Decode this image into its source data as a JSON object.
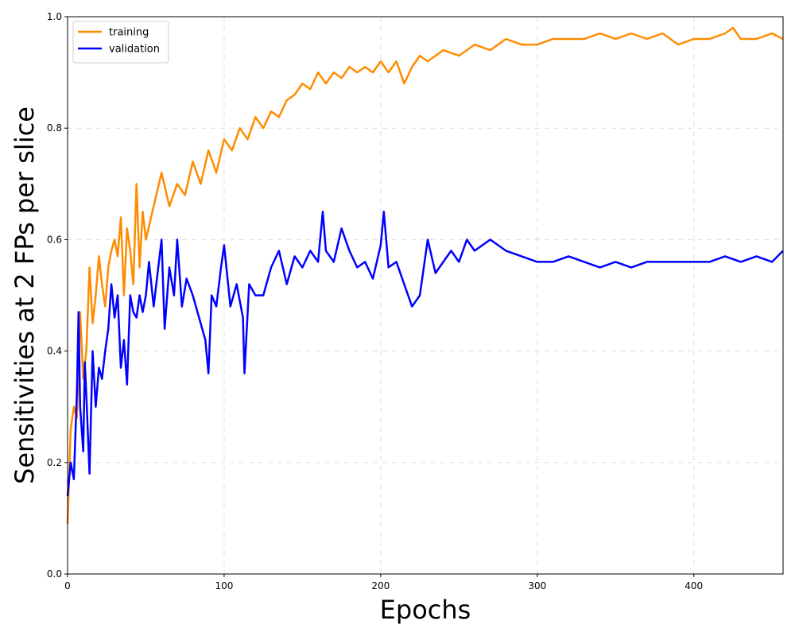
{
  "chart_data": {
    "type": "line",
    "title": "",
    "xlabel": "Epochs",
    "ylabel": "Sensitivities at 2 FPs per slice",
    "xlim": [
      0,
      457
    ],
    "ylim": [
      0.0,
      1.0
    ],
    "xticks": [
      0,
      100,
      200,
      300,
      400
    ],
    "xtick_labels": [
      "0",
      "100",
      "200",
      "300",
      "400"
    ],
    "yticks": [
      0.0,
      0.2,
      0.4,
      0.6,
      0.8,
      1.0
    ],
    "ytick_labels": [
      "0.0",
      "0.2",
      "0.4",
      "0.6",
      "0.8",
      "1.0"
    ],
    "grid": true,
    "legend_position": "top-left",
    "series": [
      {
        "name": "training",
        "color": "#ff8c00",
        "x": [
          0,
          2,
          4,
          6,
          8,
          10,
          12,
          14,
          16,
          18,
          20,
          22,
          24,
          26,
          28,
          30,
          32,
          34,
          36,
          38,
          40,
          42,
          44,
          46,
          48,
          50,
          55,
          60,
          65,
          70,
          75,
          80,
          85,
          90,
          95,
          100,
          105,
          110,
          115,
          120,
          125,
          130,
          135,
          140,
          145,
          150,
          155,
          160,
          165,
          170,
          175,
          180,
          185,
          190,
          195,
          200,
          205,
          210,
          215,
          220,
          225,
          230,
          240,
          250,
          260,
          270,
          280,
          290,
          300,
          310,
          320,
          330,
          340,
          350,
          360,
          370,
          380,
          390,
          400,
          410,
          420,
          425,
          430,
          440,
          450,
          457
        ],
        "y": [
          0.09,
          0.26,
          0.3,
          0.28,
          0.47,
          0.35,
          0.4,
          0.55,
          0.45,
          0.5,
          0.57,
          0.52,
          0.48,
          0.55,
          0.58,
          0.6,
          0.57,
          0.64,
          0.5,
          0.62,
          0.58,
          0.52,
          0.7,
          0.55,
          0.65,
          0.6,
          0.66,
          0.72,
          0.66,
          0.7,
          0.68,
          0.74,
          0.7,
          0.76,
          0.72,
          0.78,
          0.76,
          0.8,
          0.78,
          0.82,
          0.8,
          0.83,
          0.82,
          0.85,
          0.86,
          0.88,
          0.87,
          0.9,
          0.88,
          0.9,
          0.89,
          0.91,
          0.9,
          0.91,
          0.9,
          0.92,
          0.9,
          0.92,
          0.88,
          0.91,
          0.93,
          0.92,
          0.94,
          0.93,
          0.95,
          0.94,
          0.96,
          0.95,
          0.95,
          0.96,
          0.96,
          0.96,
          0.97,
          0.96,
          0.97,
          0.96,
          0.97,
          0.95,
          0.96,
          0.96,
          0.97,
          0.98,
          0.96,
          0.96,
          0.97,
          0.96
        ]
      },
      {
        "name": "validation",
        "color": "#0000ff",
        "x": [
          0,
          2,
          4,
          6,
          7,
          8,
          10,
          11,
          12,
          14,
          16,
          18,
          20,
          22,
          24,
          26,
          28,
          30,
          32,
          34,
          36,
          38,
          40,
          42,
          44,
          46,
          48,
          50,
          52,
          55,
          60,
          62,
          65,
          68,
          70,
          73,
          76,
          80,
          84,
          88,
          90,
          92,
          95,
          98,
          100,
          104,
          108,
          112,
          113,
          116,
          120,
          125,
          130,
          135,
          140,
          145,
          150,
          155,
          160,
          163,
          165,
          170,
          175,
          180,
          185,
          190,
          195,
          200,
          202,
          205,
          210,
          215,
          220,
          225,
          230,
          235,
          240,
          245,
          250,
          255,
          260,
          270,
          280,
          290,
          300,
          310,
          320,
          330,
          340,
          350,
          360,
          370,
          380,
          390,
          400,
          410,
          420,
          430,
          440,
          450,
          457
        ],
        "y": [
          0.14,
          0.2,
          0.17,
          0.33,
          0.47,
          0.3,
          0.22,
          0.38,
          0.32,
          0.18,
          0.4,
          0.3,
          0.37,
          0.35,
          0.4,
          0.44,
          0.52,
          0.46,
          0.5,
          0.37,
          0.42,
          0.34,
          0.5,
          0.47,
          0.46,
          0.5,
          0.47,
          0.5,
          0.56,
          0.48,
          0.6,
          0.44,
          0.55,
          0.5,
          0.6,
          0.48,
          0.53,
          0.5,
          0.46,
          0.42,
          0.36,
          0.5,
          0.48,
          0.55,
          0.59,
          0.48,
          0.52,
          0.46,
          0.36,
          0.52,
          0.5,
          0.5,
          0.55,
          0.58,
          0.52,
          0.57,
          0.55,
          0.58,
          0.56,
          0.65,
          0.58,
          0.56,
          0.62,
          0.58,
          0.55,
          0.56,
          0.53,
          0.59,
          0.65,
          0.55,
          0.56,
          0.52,
          0.48,
          0.5,
          0.6,
          0.54,
          0.56,
          0.58,
          0.56,
          0.6,
          0.58,
          0.6,
          0.58,
          0.57,
          0.56,
          0.56,
          0.57,
          0.56,
          0.55,
          0.56,
          0.55,
          0.56,
          0.56,
          0.56,
          0.56,
          0.56,
          0.57,
          0.56,
          0.57,
          0.56,
          0.58
        ]
      }
    ]
  }
}
